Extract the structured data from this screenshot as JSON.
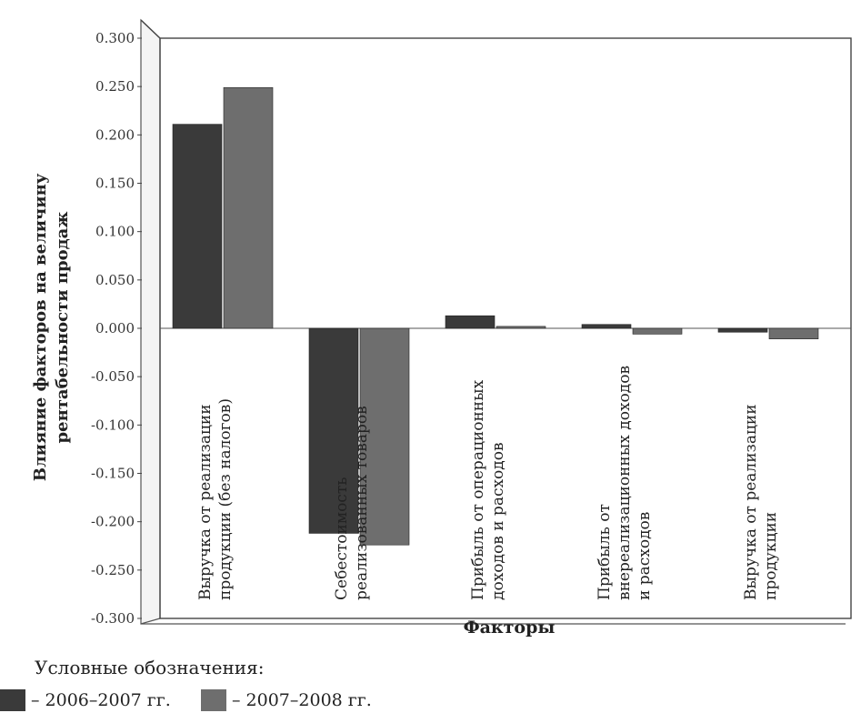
{
  "chart_data": {
    "type": "bar",
    "ylabel": "Влияние факторов на величину рентабельности продаж",
    "xlabel": "Факторы",
    "ylim": [
      -0.3,
      0.3
    ],
    "yticks": [
      "0.300",
      "0.250",
      "0.200",
      "0.150",
      "0.100",
      "0.050",
      "0.000",
      "-0.050",
      "-0.100",
      "-0.150",
      "-0.200",
      "-0.250",
      "-0.300"
    ],
    "categories": [
      "Выручка от реализации продукции (без налогов)",
      "Себестоимость реализованных товаров",
      "Прибыль от операционных доходов и расходов",
      "Прибыль от внереализационных доходов и расходов",
      "Выручка от реализации продукции"
    ],
    "category_lines": [
      [
        "Выручка от реализации",
        "продукции (без налогов)"
      ],
      [
        "Себестоимость",
        "реализованных товаров"
      ],
      [
        "Прибыль от операционных",
        "доходов и расходов"
      ],
      [
        "Прибыль от",
        "внереализационных доходов",
        "и расходов"
      ],
      [
        "Выручка от реализации",
        "продукции"
      ]
    ],
    "series": [
      {
        "name": "– 2006–2007 гг.",
        "values": [
          0.211,
          -0.212,
          0.013,
          0.004,
          -0.004
        ],
        "color": "#3a3a3a"
      },
      {
        "name": "– 2007–2008 гг.",
        "values": [
          0.249,
          -0.224,
          0.002,
          -0.006,
          -0.011
        ],
        "color": "#6e6e6e"
      }
    ],
    "grid": false,
    "legend_position": "bottom-left"
  },
  "legend": {
    "title": "Условные обозначения:",
    "items": [
      {
        "label": "– 2006–2007 гг.",
        "color": "#3a3a3a"
      },
      {
        "label": "– 2007–2008 гг.",
        "color": "#6e6e6e"
      }
    ]
  }
}
